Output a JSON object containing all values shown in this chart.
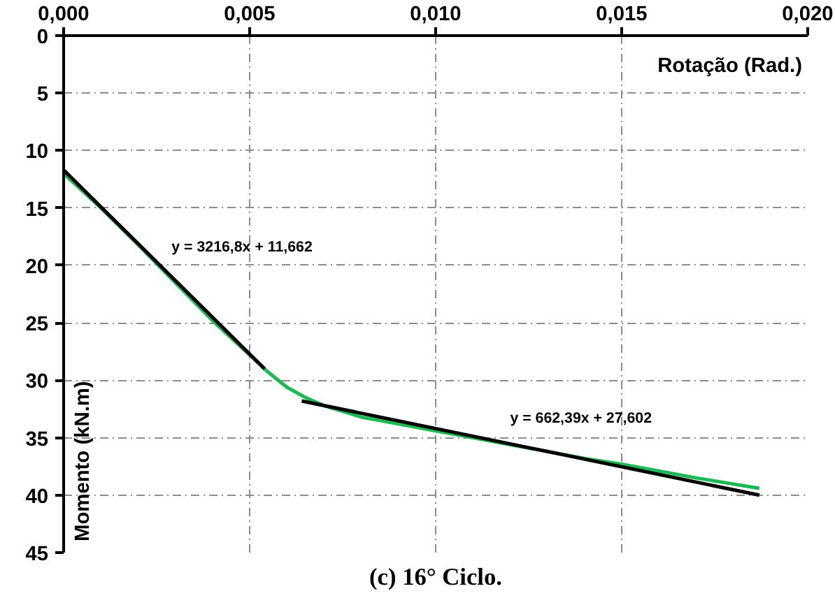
{
  "chart_data": {
    "type": "line",
    "title": "(c) 16° Ciclo.",
    "xlabel": "Rotação (Rad.)",
    "ylabel": "Momento (kN.m)",
    "xlim": [
      0,
      0.02
    ],
    "ylim": [
      45,
      0
    ],
    "xticks": [
      {
        "value": 0,
        "label": "0,000"
      },
      {
        "value": 0.005,
        "label": "0,005"
      },
      {
        "value": 0.01,
        "label": "0,010"
      },
      {
        "value": 0.015,
        "label": "0,015"
      },
      {
        "value": 0.02,
        "label": "0,020"
      }
    ],
    "yticks": [
      0,
      5,
      10,
      15,
      20,
      25,
      30,
      35,
      40,
      45
    ],
    "grid": true,
    "series": [
      {
        "color": "#1db954",
        "x": [
          0,
          0.001,
          0.002,
          0.003,
          0.004,
          0.005,
          0.0055,
          0.006,
          0.0065,
          0.007,
          0.008,
          0.009,
          0.01,
          0.011,
          0.012,
          0.013,
          0.014,
          0.015,
          0.016,
          0.017,
          0.0187
        ],
        "values": [
          12,
          15.0,
          18.2,
          21.5,
          24.8,
          27.8,
          29.3,
          30.6,
          31.5,
          32.2,
          33.2,
          33.8,
          34.4,
          35.0,
          35.6,
          36.2,
          36.8,
          37.3,
          37.9,
          38.5,
          39.4
        ]
      },
      {
        "type": "line",
        "color": "#000000",
        "x": [
          0,
          0.0054
        ],
        "values": [
          11.7,
          29.0
        ]
      },
      {
        "type": "line",
        "color": "#000000",
        "x": [
          0.0064,
          0.0187
        ],
        "values": [
          31.8,
          40.0
        ]
      }
    ],
    "annotations": [
      "y = 3216,8x + 11,662",
      "y = 662,39x + 27,602"
    ]
  }
}
